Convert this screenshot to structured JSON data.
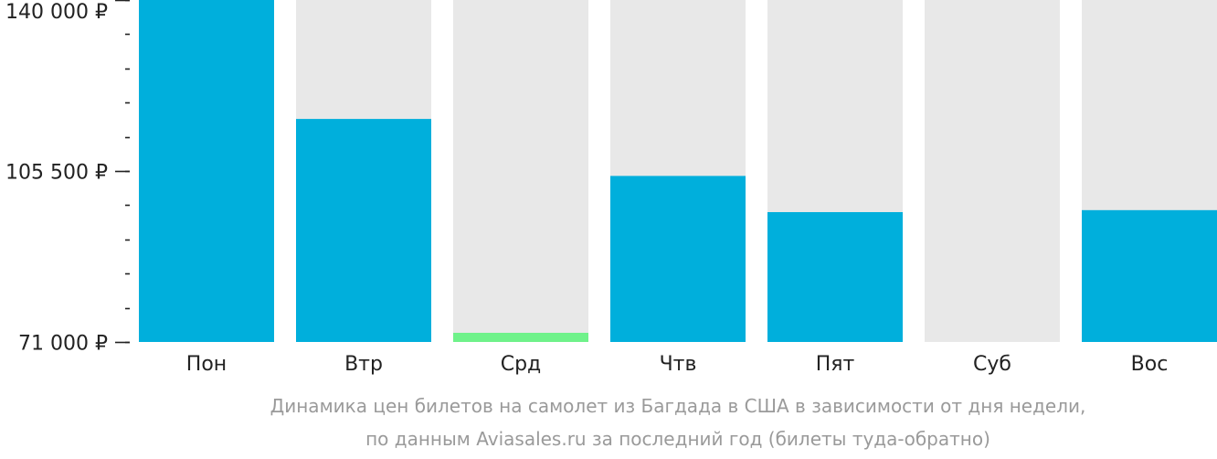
{
  "chart_data": {
    "type": "bar",
    "categories": [
      "Пон",
      "Втр",
      "Срд",
      "Чтв",
      "Пят",
      "Суб",
      "Вос"
    ],
    "values": [
      140000,
      116000,
      72800,
      104500,
      97200,
      null,
      97600
    ],
    "ylim": [
      71000,
      140000
    ],
    "y_ticks": [
      {
        "value": 140000,
        "label": "140 000 ₽"
      },
      {
        "value": 105500,
        "label": "105 500 ₽"
      },
      {
        "value": 71000,
        "label": "71 000 ₽"
      }
    ],
    "minor_tick_step": 6900,
    "colors": {
      "bar": "#00afdc",
      "bar_min": "#6ff28a",
      "background_bar": "#e8e8e8",
      "axis_text": "#222222",
      "caption": "#9a9a9a"
    },
    "min_category": "Срд",
    "caption": {
      "line1": "Динамика цен билетов на самолет из Багдада в США в зависимости от дня недели,",
      "line2": "по данным Aviasales.ru за последний год (билеты туда-обратно)"
    }
  }
}
